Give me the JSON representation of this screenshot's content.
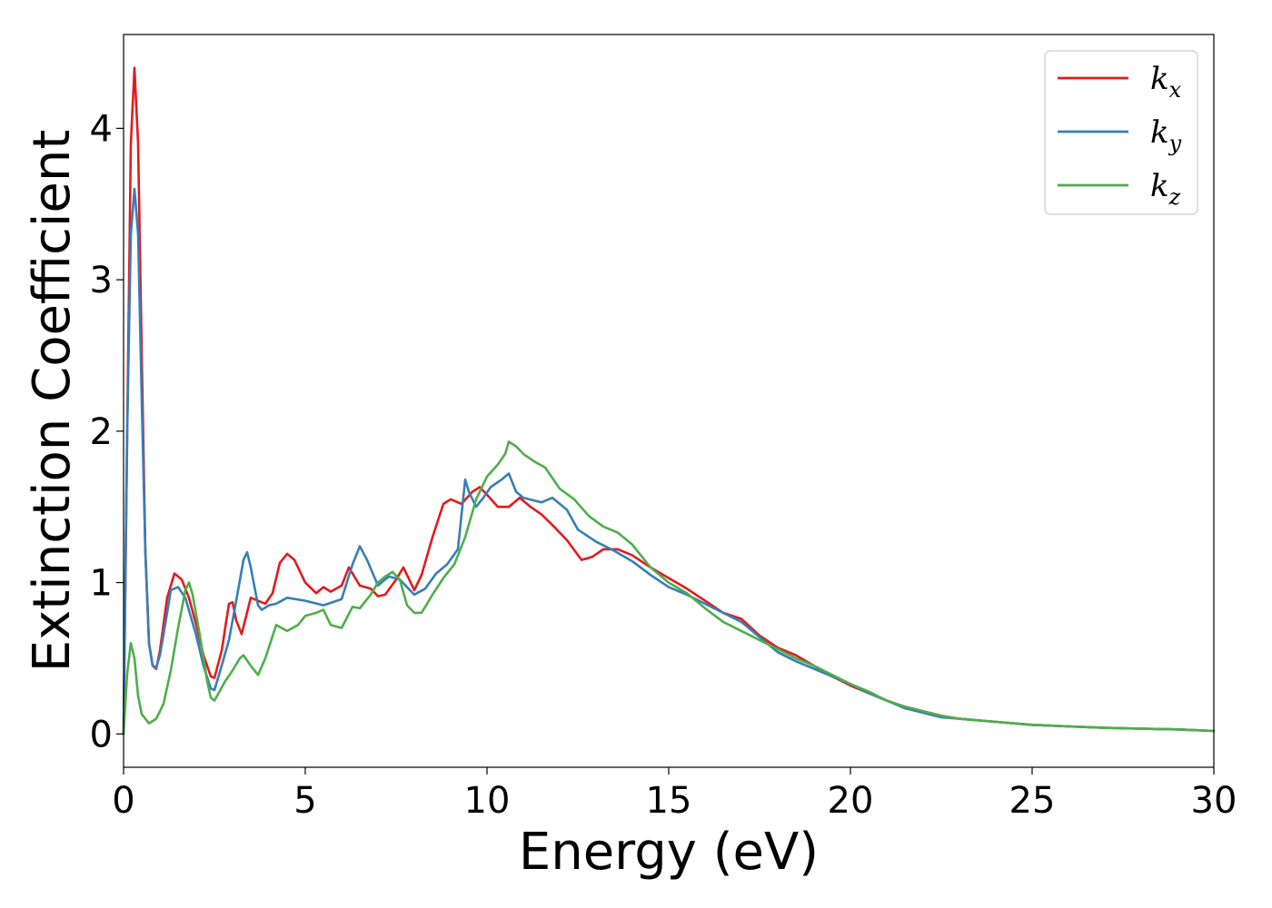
{
  "chart_data": {
    "type": "line",
    "title": "",
    "xlabel": "Energy (eV)",
    "ylabel": "Extinction Coefficient",
    "xlim": [
      0,
      30
    ],
    "ylim": [
      -0.22,
      4.62
    ],
    "xticks": [
      0,
      5,
      10,
      15,
      20,
      25,
      30
    ],
    "yticks": [
      0,
      1,
      2,
      3,
      4
    ],
    "grid": false,
    "legend_position": "top-right",
    "series": [
      {
        "name": "k_x",
        "legend_base": "k",
        "legend_sub": "x",
        "color": "#e41a1c",
        "points": [
          [
            0,
            0
          ],
          [
            0.1,
            2.0
          ],
          [
            0.2,
            3.9
          ],
          [
            0.3,
            4.4
          ],
          [
            0.4,
            3.9
          ],
          [
            0.5,
            2.5
          ],
          [
            0.6,
            1.2
          ],
          [
            0.7,
            0.6
          ],
          [
            0.8,
            0.45
          ],
          [
            0.9,
            0.43
          ],
          [
            1.0,
            0.55
          ],
          [
            1.2,
            0.9
          ],
          [
            1.4,
            1.06
          ],
          [
            1.6,
            1.02
          ],
          [
            1.8,
            0.9
          ],
          [
            2.0,
            0.72
          ],
          [
            2.2,
            0.52
          ],
          [
            2.4,
            0.38
          ],
          [
            2.5,
            0.37
          ],
          [
            2.7,
            0.55
          ],
          [
            2.9,
            0.86
          ],
          [
            3.0,
            0.87
          ],
          [
            3.1,
            0.75
          ],
          [
            3.25,
            0.66
          ],
          [
            3.5,
            0.9
          ],
          [
            3.7,
            0.88
          ],
          [
            3.9,
            0.86
          ],
          [
            4.1,
            0.93
          ],
          [
            4.3,
            1.13
          ],
          [
            4.5,
            1.19
          ],
          [
            4.7,
            1.15
          ],
          [
            5.0,
            1.0
          ],
          [
            5.3,
            0.93
          ],
          [
            5.5,
            0.97
          ],
          [
            5.7,
            0.94
          ],
          [
            6.0,
            0.98
          ],
          [
            6.2,
            1.1
          ],
          [
            6.5,
            0.98
          ],
          [
            6.8,
            0.96
          ],
          [
            7.0,
            0.91
          ],
          [
            7.2,
            0.92
          ],
          [
            7.5,
            1.02
          ],
          [
            7.7,
            1.1
          ],
          [
            8.0,
            0.95
          ],
          [
            8.2,
            1.05
          ],
          [
            8.5,
            1.3
          ],
          [
            8.8,
            1.52
          ],
          [
            9.0,
            1.55
          ],
          [
            9.3,
            1.52
          ],
          [
            9.6,
            1.6
          ],
          [
            9.8,
            1.63
          ],
          [
            10.0,
            1.58
          ],
          [
            10.3,
            1.5
          ],
          [
            10.6,
            1.5
          ],
          [
            10.9,
            1.56
          ],
          [
            11.2,
            1.5
          ],
          [
            11.5,
            1.45
          ],
          [
            11.8,
            1.38
          ],
          [
            12.2,
            1.28
          ],
          [
            12.6,
            1.15
          ],
          [
            12.9,
            1.17
          ],
          [
            13.2,
            1.22
          ],
          [
            13.6,
            1.22
          ],
          [
            14.0,
            1.18
          ],
          [
            14.5,
            1.1
          ],
          [
            15.0,
            1.03
          ],
          [
            15.5,
            0.96
          ],
          [
            16.0,
            0.88
          ],
          [
            16.5,
            0.8
          ],
          [
            17.0,
            0.76
          ],
          [
            17.5,
            0.65
          ],
          [
            18.0,
            0.57
          ],
          [
            18.5,
            0.52
          ],
          [
            19.0,
            0.45
          ],
          [
            19.5,
            0.38
          ],
          [
            20.0,
            0.32
          ],
          [
            20.5,
            0.27
          ],
          [
            21.0,
            0.22
          ],
          [
            21.5,
            0.18
          ],
          [
            22.0,
            0.15
          ],
          [
            22.5,
            0.12
          ],
          [
            23.0,
            0.1
          ],
          [
            24.0,
            0.08
          ],
          [
            25.0,
            0.06
          ],
          [
            26.0,
            0.05
          ],
          [
            27.0,
            0.04
          ],
          [
            28.0,
            0.035
          ],
          [
            29.0,
            0.03
          ],
          [
            30.0,
            0.02
          ]
        ]
      },
      {
        "name": "k_y",
        "legend_base": "k",
        "legend_sub": "y",
        "color": "#377eb8",
        "points": [
          [
            0,
            0
          ],
          [
            0.1,
            2.0
          ],
          [
            0.2,
            3.3
          ],
          [
            0.3,
            3.6
          ],
          [
            0.4,
            3.3
          ],
          [
            0.5,
            2.2
          ],
          [
            0.6,
            1.2
          ],
          [
            0.7,
            0.6
          ],
          [
            0.8,
            0.45
          ],
          [
            0.9,
            0.44
          ],
          [
            1.0,
            0.52
          ],
          [
            1.2,
            0.8
          ],
          [
            1.3,
            0.95
          ],
          [
            1.5,
            0.97
          ],
          [
            1.7,
            0.9
          ],
          [
            2.0,
            0.65
          ],
          [
            2.2,
            0.45
          ],
          [
            2.4,
            0.3
          ],
          [
            2.5,
            0.29
          ],
          [
            2.7,
            0.45
          ],
          [
            2.9,
            0.62
          ],
          [
            3.1,
            0.88
          ],
          [
            3.3,
            1.15
          ],
          [
            3.4,
            1.2
          ],
          [
            3.5,
            1.1
          ],
          [
            3.7,
            0.85
          ],
          [
            3.8,
            0.82
          ],
          [
            4.0,
            0.85
          ],
          [
            4.2,
            0.86
          ],
          [
            4.5,
            0.9
          ],
          [
            5.0,
            0.88
          ],
          [
            5.5,
            0.85
          ],
          [
            6.0,
            0.89
          ],
          [
            6.3,
            1.12
          ],
          [
            6.5,
            1.24
          ],
          [
            6.7,
            1.15
          ],
          [
            7.0,
            0.98
          ],
          [
            7.3,
            1.04
          ],
          [
            7.6,
            1.02
          ],
          [
            7.8,
            0.97
          ],
          [
            8.0,
            0.92
          ],
          [
            8.3,
            0.96
          ],
          [
            8.6,
            1.06
          ],
          [
            8.9,
            1.12
          ],
          [
            9.2,
            1.22
          ],
          [
            9.4,
            1.68
          ],
          [
            9.5,
            1.6
          ],
          [
            9.7,
            1.5
          ],
          [
            9.9,
            1.56
          ],
          [
            10.1,
            1.63
          ],
          [
            10.4,
            1.68
          ],
          [
            10.6,
            1.72
          ],
          [
            10.8,
            1.6
          ],
          [
            11.0,
            1.56
          ],
          [
            11.5,
            1.53
          ],
          [
            11.8,
            1.56
          ],
          [
            12.2,
            1.48
          ],
          [
            12.5,
            1.35
          ],
          [
            13.0,
            1.27
          ],
          [
            13.5,
            1.21
          ],
          [
            14.0,
            1.14
          ],
          [
            14.5,
            1.05
          ],
          [
            15.0,
            0.97
          ],
          [
            15.5,
            0.92
          ],
          [
            16.0,
            0.86
          ],
          [
            16.5,
            0.8
          ],
          [
            17.0,
            0.74
          ],
          [
            17.5,
            0.64
          ],
          [
            18.0,
            0.54
          ],
          [
            18.5,
            0.48
          ],
          [
            19.0,
            0.43
          ],
          [
            19.5,
            0.38
          ],
          [
            20.0,
            0.33
          ],
          [
            20.5,
            0.27
          ],
          [
            21.0,
            0.22
          ],
          [
            21.5,
            0.17
          ],
          [
            22.0,
            0.14
          ],
          [
            22.5,
            0.11
          ],
          [
            23.0,
            0.1
          ],
          [
            24.0,
            0.08
          ],
          [
            25.0,
            0.06
          ],
          [
            26.0,
            0.05
          ],
          [
            27.0,
            0.04
          ],
          [
            28.0,
            0.035
          ],
          [
            29.0,
            0.03
          ],
          [
            30.0,
            0.02
          ]
        ]
      },
      {
        "name": "k_z",
        "legend_base": "k",
        "legend_sub": "z",
        "color": "#4daf4a",
        "points": [
          [
            0,
            0
          ],
          [
            0.1,
            0.4
          ],
          [
            0.2,
            0.6
          ],
          [
            0.3,
            0.5
          ],
          [
            0.4,
            0.25
          ],
          [
            0.5,
            0.13
          ],
          [
            0.7,
            0.07
          ],
          [
            0.9,
            0.1
          ],
          [
            1.1,
            0.2
          ],
          [
            1.3,
            0.42
          ],
          [
            1.5,
            0.7
          ],
          [
            1.7,
            0.95
          ],
          [
            1.8,
            1.0
          ],
          [
            1.9,
            0.92
          ],
          [
            2.1,
            0.65
          ],
          [
            2.3,
            0.35
          ],
          [
            2.4,
            0.24
          ],
          [
            2.5,
            0.22
          ],
          [
            2.8,
            0.35
          ],
          [
            3.0,
            0.42
          ],
          [
            3.2,
            0.5
          ],
          [
            3.3,
            0.52
          ],
          [
            3.5,
            0.45
          ],
          [
            3.7,
            0.39
          ],
          [
            3.9,
            0.5
          ],
          [
            4.2,
            0.72
          ],
          [
            4.5,
            0.68
          ],
          [
            4.8,
            0.72
          ],
          [
            5.0,
            0.78
          ],
          [
            5.3,
            0.8
          ],
          [
            5.5,
            0.82
          ],
          [
            5.7,
            0.72
          ],
          [
            6.0,
            0.7
          ],
          [
            6.3,
            0.84
          ],
          [
            6.5,
            0.83
          ],
          [
            6.8,
            0.92
          ],
          [
            7.0,
            1.0
          ],
          [
            7.2,
            1.04
          ],
          [
            7.4,
            1.07
          ],
          [
            7.6,
            1.02
          ],
          [
            7.8,
            0.85
          ],
          [
            8.0,
            0.8
          ],
          [
            8.2,
            0.8
          ],
          [
            8.5,
            0.92
          ],
          [
            8.8,
            1.03
          ],
          [
            9.1,
            1.12
          ],
          [
            9.4,
            1.3
          ],
          [
            9.7,
            1.55
          ],
          [
            10.0,
            1.7
          ],
          [
            10.3,
            1.78
          ],
          [
            10.5,
            1.85
          ],
          [
            10.6,
            1.93
          ],
          [
            10.8,
            1.9
          ],
          [
            11.0,
            1.85
          ],
          [
            11.3,
            1.8
          ],
          [
            11.6,
            1.76
          ],
          [
            12.0,
            1.62
          ],
          [
            12.4,
            1.55
          ],
          [
            12.8,
            1.44
          ],
          [
            13.2,
            1.37
          ],
          [
            13.6,
            1.33
          ],
          [
            14.0,
            1.25
          ],
          [
            14.5,
            1.1
          ],
          [
            15.0,
            1.0
          ],
          [
            15.5,
            0.93
          ],
          [
            16.0,
            0.83
          ],
          [
            16.5,
            0.74
          ],
          [
            17.0,
            0.68
          ],
          [
            17.5,
            0.62
          ],
          [
            18.0,
            0.56
          ],
          [
            18.5,
            0.5
          ],
          [
            19.0,
            0.45
          ],
          [
            19.5,
            0.39
          ],
          [
            20.0,
            0.33
          ],
          [
            20.5,
            0.28
          ],
          [
            21.0,
            0.22
          ],
          [
            21.5,
            0.18
          ],
          [
            22.0,
            0.15
          ],
          [
            22.5,
            0.12
          ],
          [
            23.0,
            0.1
          ],
          [
            24.0,
            0.08
          ],
          [
            25.0,
            0.06
          ],
          [
            26.0,
            0.05
          ],
          [
            27.0,
            0.04
          ],
          [
            28.0,
            0.035
          ],
          [
            29.0,
            0.03
          ],
          [
            30.0,
            0.02
          ]
        ]
      }
    ]
  }
}
